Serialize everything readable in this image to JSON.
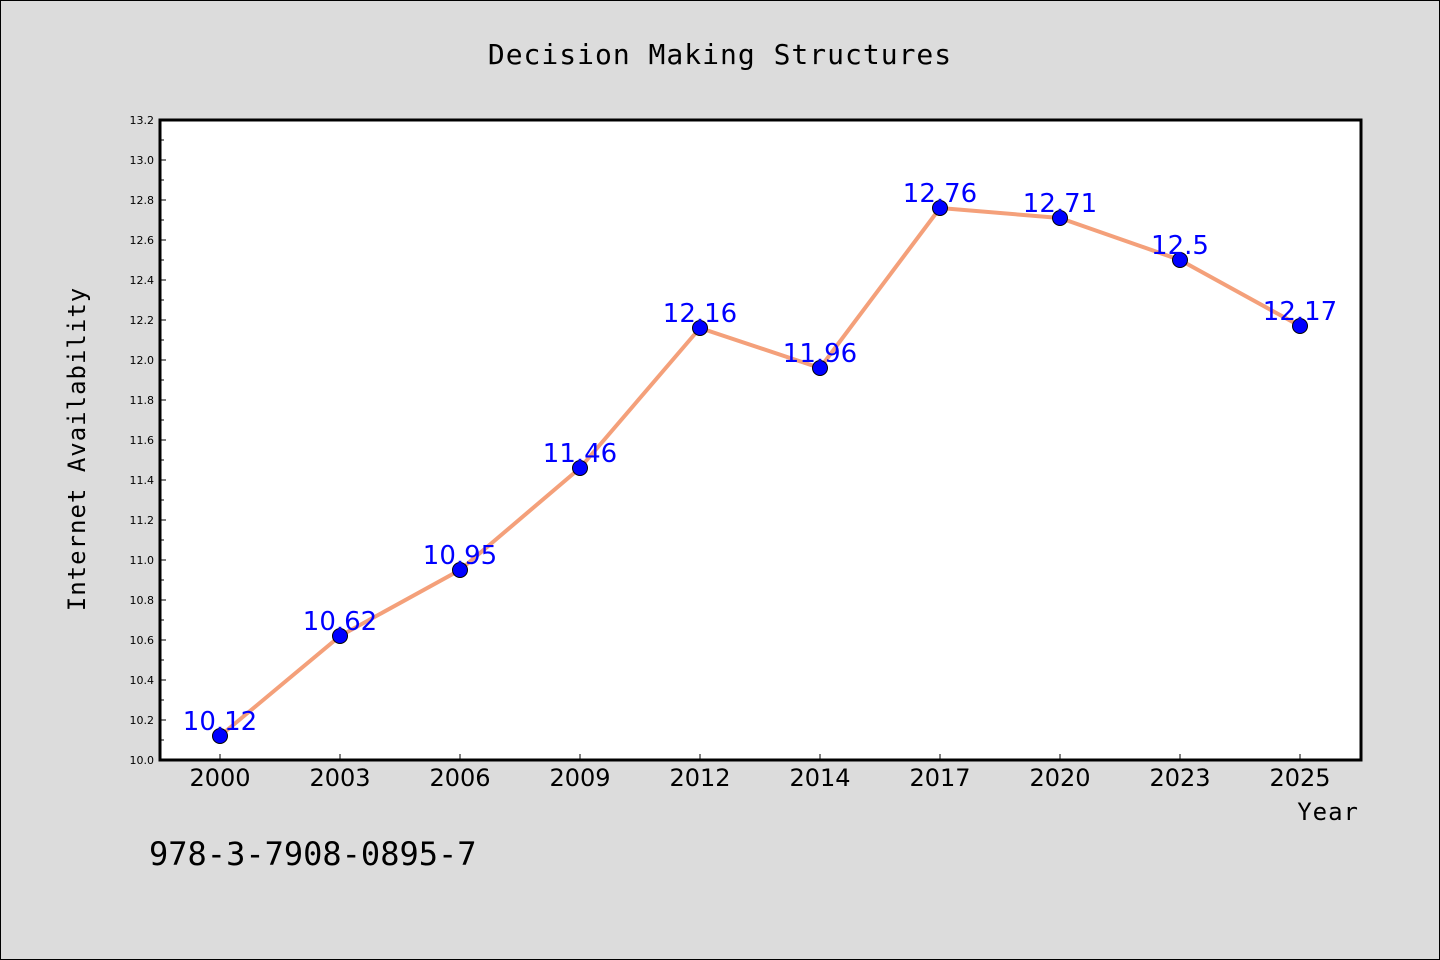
{
  "chart_data": {
    "type": "line",
    "title": "Decision Making Structures",
    "xlabel": "Year",
    "ylabel": "Internet Availability",
    "categories": [
      "2000",
      "2003",
      "2006",
      "2009",
      "2012",
      "2014",
      "2017",
      "2020",
      "2023",
      "2025"
    ],
    "values": [
      10.12,
      10.62,
      10.95,
      11.46,
      12.16,
      11.96,
      12.76,
      12.71,
      12.5,
      12.17
    ],
    "data_labels": [
      "10.12",
      "10.62",
      "10.95",
      "11.46",
      "12.16",
      "11.96",
      "12.76",
      "12.71",
      "12.5",
      "12.17"
    ],
    "ylim": [
      10.0,
      13.2
    ],
    "yticks": [
      "10.0",
      "10.2",
      "10.4",
      "10.6",
      "10.8",
      "11.0",
      "11.2",
      "11.4",
      "11.6",
      "11.8",
      "12.0",
      "12.2",
      "12.4",
      "12.6",
      "12.8",
      "13.0",
      "13.2"
    ],
    "grid": false,
    "line_color": "#f4a07a",
    "marker_color": "#0000ff",
    "label_color": "#0000ff"
  },
  "footer": {
    "code": "978-3-7908-0895-7"
  }
}
